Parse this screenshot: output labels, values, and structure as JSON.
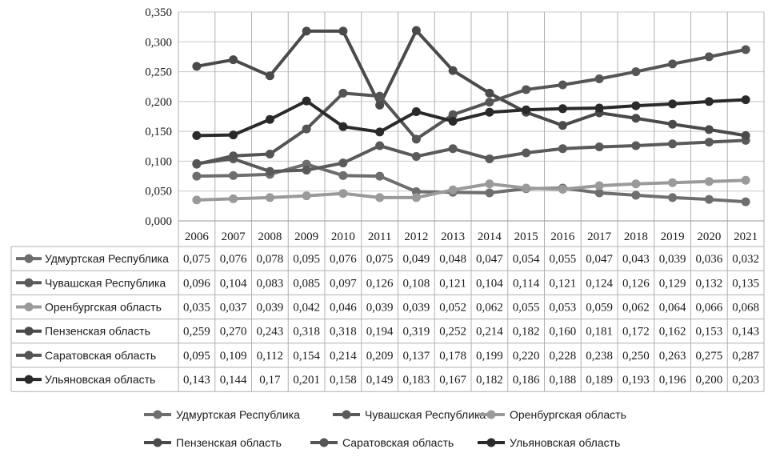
{
  "chart_data": {
    "type": "line",
    "title": "",
    "xlabel": "",
    "ylabel": "",
    "ylim": [
      0,
      0.35
    ],
    "y_ticks": [
      "0,000",
      "0,050",
      "0,100",
      "0,150",
      "0,200",
      "0,250",
      "0,300",
      "0,350"
    ],
    "grid": "horizontal",
    "legend": "bottom",
    "x": [
      "2006",
      "2007",
      "2008",
      "2009",
      "2010",
      "2011",
      "2012",
      "2013",
      "2014",
      "2015",
      "2016",
      "2017",
      "2018",
      "2019",
      "2020",
      "2021"
    ],
    "series": [
      {
        "name": "Удмуртская Республика",
        "color": "#6e6e6e",
        "values": [
          0.075,
          0.076,
          0.078,
          0.095,
          0.076,
          0.075,
          0.049,
          0.048,
          0.047,
          0.054,
          0.055,
          0.047,
          0.043,
          0.039,
          0.036,
          0.032
        ],
        "labels": [
          "0,075",
          "0,076",
          "0,078",
          "0,095",
          "0,076",
          "0,075",
          "0,049",
          "0,048",
          "0,047",
          "0,054",
          "0,055",
          "0,047",
          "0,043",
          "0,039",
          "0,036",
          "0,032"
        ]
      },
      {
        "name": "Чувашская Республика",
        "color": "#5a5a5a",
        "values": [
          0.096,
          0.104,
          0.083,
          0.085,
          0.097,
          0.126,
          0.108,
          0.121,
          0.104,
          0.114,
          0.121,
          0.124,
          0.126,
          0.129,
          0.132,
          0.135
        ],
        "labels": [
          "0,096",
          "0,104",
          "0,083",
          "0,085",
          "0,097",
          "0,126",
          "0,108",
          "0,121",
          "0,104",
          "0,114",
          "0,121",
          "0,124",
          "0,126",
          "0,129",
          "0,132",
          "0,135"
        ]
      },
      {
        "name": "Оренбургская область",
        "color": "#9a9a9a",
        "values": [
          0.035,
          0.037,
          0.039,
          0.042,
          0.046,
          0.039,
          0.039,
          0.052,
          0.062,
          0.055,
          0.053,
          0.059,
          0.062,
          0.064,
          0.066,
          0.068
        ],
        "labels": [
          "0,035",
          "0,037",
          "0,039",
          "0,042",
          "0,046",
          "0,039",
          "0,039",
          "0,052",
          "0,062",
          "0,055",
          "0,053",
          "0,059",
          "0,062",
          "0,064",
          "0,066",
          "0,068"
        ]
      },
      {
        "name": "Пензенская область",
        "color": "#4a4a4a",
        "values": [
          0.259,
          0.27,
          0.243,
          0.318,
          0.318,
          0.194,
          0.319,
          0.252,
          0.214,
          0.182,
          0.16,
          0.181,
          0.172,
          0.162,
          0.153,
          0.143
        ],
        "labels": [
          "0,259",
          "0,270",
          "0,243",
          "0,318",
          "0,318",
          "0,194",
          "0,319",
          "0,252",
          "0,214",
          "0,182",
          "0,160",
          "0,181",
          "0,172",
          "0,162",
          "0,153",
          "0,143"
        ]
      },
      {
        "name": "Саратовская область",
        "color": "#555555",
        "values": [
          0.095,
          0.109,
          0.112,
          0.154,
          0.214,
          0.209,
          0.137,
          0.178,
          0.199,
          0.22,
          0.228,
          0.238,
          0.25,
          0.263,
          0.275,
          0.287
        ],
        "labels": [
          "0,095",
          "0,109",
          "0,112",
          "0,154",
          "0,214",
          "0,209",
          "0,137",
          "0,178",
          "0,199",
          "0,220",
          "0,228",
          "0,238",
          "0,250",
          "0,263",
          "0,275",
          "0,287"
        ]
      },
      {
        "name": "Ульяновская область",
        "color": "#2a2a2a",
        "values": [
          0.143,
          0.144,
          0.17,
          0.201,
          0.158,
          0.149,
          0.183,
          0.167,
          0.182,
          0.186,
          0.188,
          0.189,
          0.193,
          0.196,
          0.2,
          0.203
        ],
        "labels": [
          "0,143",
          "0,144",
          "0,17",
          "0,201",
          "0,158",
          "0,149",
          "0,183",
          "0,167",
          "0,182",
          "0,186",
          "0,188",
          "0,189",
          "0,193",
          "0,196",
          "0,200",
          "0,203"
        ]
      }
    ]
  }
}
